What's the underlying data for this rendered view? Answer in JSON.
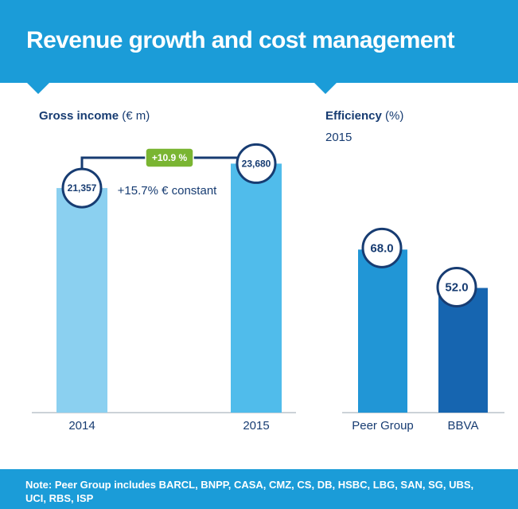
{
  "header": {
    "title": "Revenue growth and cost management"
  },
  "footer": {
    "note": "Note: Peer Group includes BARCL, BNPP, CASA, CMZ, CS, DB, HSBC, LBG, SAN, SG, UBS, UCI, RBS, ISP"
  },
  "colors": {
    "header_bg": "#1B9CD8",
    "text": "#173C72",
    "growth_badge": "#7AB532",
    "bar_2014": "#8BD0F0",
    "bar_2015": "#50BCEB",
    "bar_peer": "#2196D6",
    "bar_bbva": "#1665B0"
  },
  "chart_data": [
    {
      "type": "bar",
      "title": "Gross income",
      "unit": "(€ m)",
      "categories": [
        "2014",
        "2015"
      ],
      "values": [
        21357,
        23680
      ],
      "value_labels": [
        "21,357",
        "23,680"
      ],
      "ylim": [
        0,
        40000
      ],
      "annotations": {
        "growth": "+10.9 %",
        "constant": "+15.7% € constant"
      }
    },
    {
      "type": "bar",
      "title": "Efficiency",
      "unit": "(%)",
      "subtitle": "2015",
      "categories": [
        "Peer Group",
        "BBVA"
      ],
      "values": [
        68.0,
        52.0
      ],
      "value_labels": [
        "68.0",
        "52.0"
      ],
      "ylim": [
        0,
        100
      ]
    }
  ]
}
